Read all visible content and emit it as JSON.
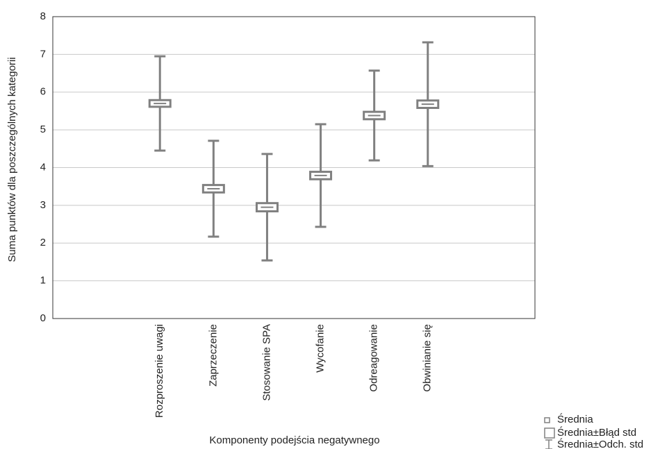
{
  "chart_data": {
    "type": "errorbar",
    "x_label": "Komponenty podejścia negatywnego",
    "y_label": "Suma punktów dla poszczególnych kategorii",
    "categories": [
      "Rozproszenie uwagi",
      "Zaprzeczenie",
      "Stosowanie SPA",
      "Wycofanie",
      "Odreagowanie",
      "Obwinianie się"
    ],
    "series": [
      {
        "name": "Średnia",
        "values": [
          5.7,
          3.44,
          2.95,
          3.79,
          5.38,
          5.68
        ]
      },
      {
        "name": "Średnia±Błąd std",
        "values": [
          0.07,
          0.08,
          0.09,
          0.08,
          0.08,
          0.08
        ]
      },
      {
        "name": "Średnia±Odch. std",
        "values": [
          1.25,
          1.27,
          1.41,
          1.36,
          1.19,
          1.64
        ]
      }
    ],
    "color": "#808080",
    "ylim": [
      0,
      8
    ],
    "yticks": [
      0,
      1,
      2,
      3,
      4,
      5,
      6,
      7,
      8
    ],
    "grid": true
  }
}
